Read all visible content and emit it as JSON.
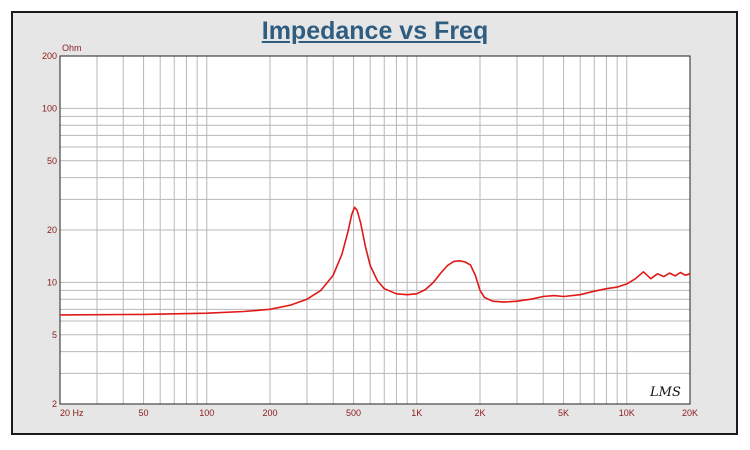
{
  "chart_data": {
    "type": "line",
    "title": "Impedance vs Freq",
    "ylabel": "Ohm",
    "xlabel": "",
    "x_scale": "log",
    "y_scale": "log",
    "xlim": [
      20,
      20000
    ],
    "ylim": [
      2,
      200
    ],
    "x_tick_labels": [
      {
        "value": 20,
        "label": "20  Hz"
      },
      {
        "value": 50,
        "label": "50"
      },
      {
        "value": 100,
        "label": "100"
      },
      {
        "value": 200,
        "label": "200"
      },
      {
        "value": 500,
        "label": "500"
      },
      {
        "value": 1000,
        "label": "1K"
      },
      {
        "value": 2000,
        "label": "2K"
      },
      {
        "value": 5000,
        "label": "5K"
      },
      {
        "value": 10000,
        "label": "10K"
      },
      {
        "value": 20000,
        "label": "20K"
      }
    ],
    "y_tick_labels": [
      {
        "value": 200,
        "label": "200"
      },
      {
        "value": 100,
        "label": "100"
      },
      {
        "value": 50,
        "label": "50"
      },
      {
        "value": 20,
        "label": "20"
      },
      {
        "value": 10,
        "label": "10"
      },
      {
        "value": 5,
        "label": "5"
      },
      {
        "value": 2,
        "label": "2"
      }
    ],
    "grid": true,
    "watermark": "LMS",
    "colors": {
      "line": "#e01818",
      "grid": "#b8b8b8",
      "plot_bg": "#ffffff",
      "frame_bg": "#e6e6e6",
      "title": "#2f5d80",
      "tick_label": "#8b1a1a"
    },
    "series": [
      {
        "x": [
          20,
          50,
          100,
          150,
          200,
          250,
          300,
          350,
          400,
          440,
          470,
          490,
          505,
          520,
          540,
          570,
          600,
          650,
          700,
          800,
          900,
          1000,
          1100,
          1200,
          1300,
          1400,
          1500,
          1600,
          1700,
          1800,
          1900,
          2000,
          2100,
          2300,
          2600,
          3000,
          3500,
          4000,
          4500,
          5000,
          6000,
          7000,
          8000,
          9000,
          10000,
          11000,
          12000,
          12500,
          13000,
          14000,
          15000,
          16000,
          17000,
          18000,
          19000,
          20000
        ],
        "y": [
          6.5,
          6.55,
          6.65,
          6.8,
          7.0,
          7.4,
          8.0,
          9.0,
          11.0,
          14.5,
          19.5,
          24.5,
          27.0,
          26.0,
          22.0,
          16.0,
          12.5,
          10.2,
          9.2,
          8.6,
          8.5,
          8.6,
          9.1,
          10.0,
          11.3,
          12.5,
          13.2,
          13.3,
          13.1,
          12.6,
          11.0,
          9.0,
          8.2,
          7.8,
          7.7,
          7.8,
          8.0,
          8.3,
          8.4,
          8.3,
          8.5,
          8.9,
          9.2,
          9.4,
          9.8,
          10.5,
          11.5,
          11.0,
          10.5,
          11.2,
          10.8,
          11.3,
          10.9,
          11.4,
          11.0,
          11.2
        ]
      }
    ]
  }
}
